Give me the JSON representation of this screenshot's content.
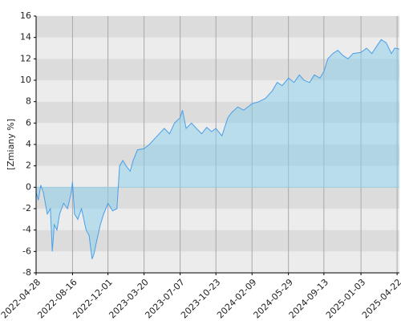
{
  "chart_data": {
    "type": "line",
    "y_label": "[Zmiany %]",
    "x": [
      "2022-04-28",
      "2022-05-05",
      "2022-05-12",
      "2022-05-20",
      "2022-06-01",
      "2022-06-10",
      "2022-06-16",
      "2022-06-22",
      "2022-06-30",
      "2022-07-08",
      "2022-07-20",
      "2022-08-01",
      "2022-08-12",
      "2022-08-16",
      "2022-08-22",
      "2022-09-01",
      "2022-09-12",
      "2022-09-26",
      "2022-10-05",
      "2022-10-14",
      "2022-10-20",
      "2022-10-28",
      "2022-11-08",
      "2022-11-18",
      "2022-12-01",
      "2022-12-15",
      "2022-12-28",
      "2023-01-05",
      "2023-01-15",
      "2023-01-25",
      "2023-02-06",
      "2023-02-15",
      "2023-02-28",
      "2023-03-20",
      "2023-04-05",
      "2023-04-20",
      "2023-05-05",
      "2023-05-20",
      "2023-06-05",
      "2023-06-20",
      "2023-07-07",
      "2023-07-14",
      "2023-07-25",
      "2023-08-10",
      "2023-08-25",
      "2023-09-10",
      "2023-09-25",
      "2023-10-10",
      "2023-10-23",
      "2023-11-10",
      "2023-11-28",
      "2023-12-10",
      "2023-12-28",
      "2024-01-15",
      "2024-02-09",
      "2024-03-01",
      "2024-03-20",
      "2024-04-10",
      "2024-04-25",
      "2024-05-10",
      "2024-05-29",
      "2024-06-15",
      "2024-07-01",
      "2024-07-15",
      "2024-08-01",
      "2024-08-15",
      "2024-09-01",
      "2024-09-13",
      "2024-09-25",
      "2024-10-10",
      "2024-10-25",
      "2024-11-10",
      "2024-11-25",
      "2024-12-10",
      "2025-01-03",
      "2025-01-20",
      "2025-02-05",
      "2025-02-20",
      "2025-03-05",
      "2025-03-20",
      "2025-04-05",
      "2025-04-15",
      "2025-04-29"
    ],
    "values": [
      -0.5,
      -1.2,
      0.2,
      -0.5,
      -2.5,
      -2.0,
      -6.0,
      -3.5,
      -4.0,
      -2.5,
      -1.5,
      -2.0,
      -0.5,
      0.5,
      -2.5,
      -3.0,
      -2.0,
      -4.0,
      -4.5,
      -6.7,
      -6.2,
      -5.0,
      -3.5,
      -2.5,
      -1.5,
      -2.2,
      -2.0,
      2.0,
      2.5,
      2.0,
      1.5,
      2.5,
      3.5,
      3.6,
      4.0,
      4.5,
      5.0,
      5.5,
      5.0,
      6.0,
      6.5,
      7.2,
      5.5,
      6.0,
      5.5,
      5.0,
      5.6,
      5.2,
      5.5,
      4.8,
      6.5,
      7.0,
      7.5,
      7.2,
      7.8,
      8.0,
      8.3,
      9.0,
      9.8,
      9.5,
      10.2,
      9.8,
      10.5,
      10.0,
      9.8,
      10.5,
      10.2,
      10.8,
      12.0,
      12.5,
      12.8,
      12.3,
      12.0,
      12.5,
      12.6,
      13.0,
      12.5,
      13.2,
      13.8,
      13.5,
      12.5,
      13.0,
      12.9
    ],
    "color": "#4a9ee8",
    "xlim": [
      "2022-04-28",
      "2025-04-29"
    ],
    "xticks": [
      "2022-04-28",
      "2022-08-16",
      "2022-12-01",
      "2023-03-20",
      "2023-07-07",
      "2023-10-23",
      "2024-02-09",
      "2024-05-29",
      "2024-09-13",
      "2025-01-03",
      "2025-04-22"
    ],
    "ylim": [
      -8,
      16
    ],
    "yticks": [
      -8,
      -6,
      -4,
      -2,
      0,
      2,
      4,
      6,
      8,
      10,
      12,
      14,
      16
    ],
    "grid": true
  }
}
